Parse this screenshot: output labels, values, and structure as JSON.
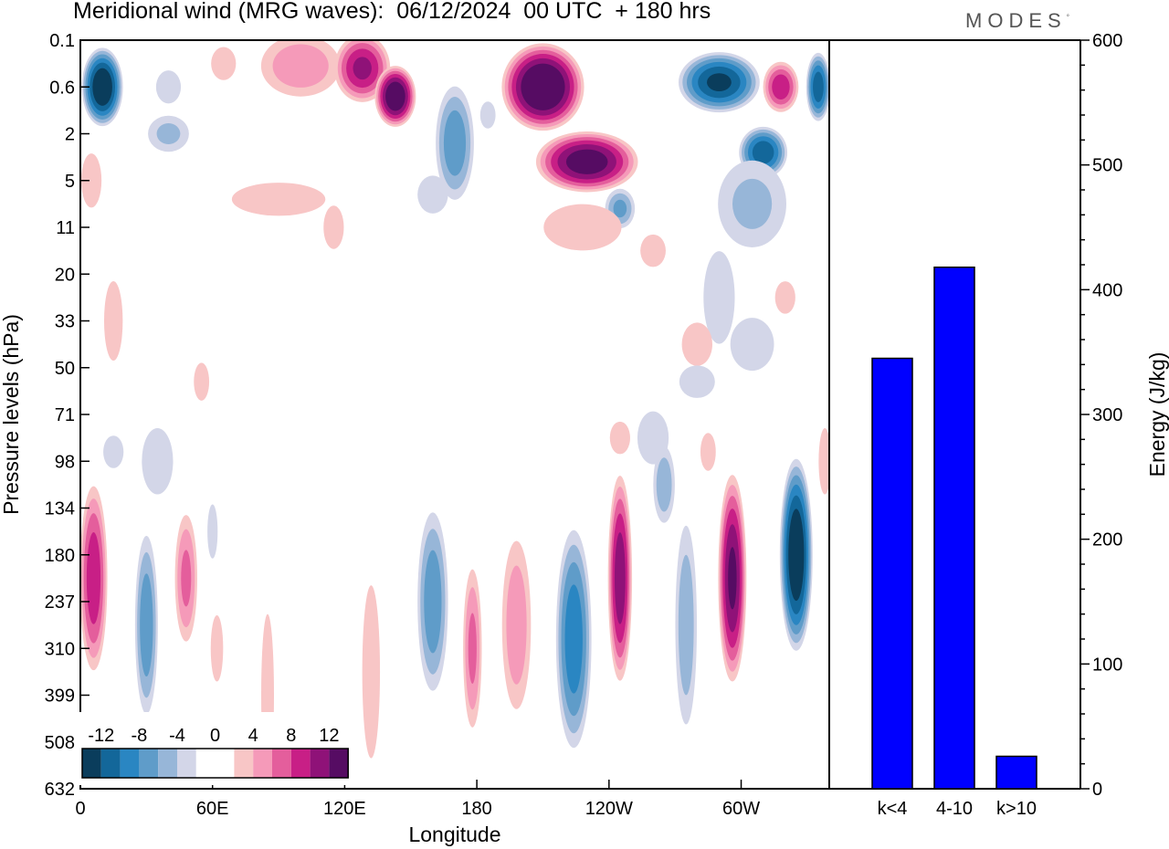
{
  "title": "Meridional wind (MRG waves):  06/12/2024  00 UTC  + 180 hrs",
  "brand": "MODES",
  "brand_mark": "°",
  "chart_data": [
    {
      "type": "heatmap",
      "name": "Meridional wind longitude-pressure cross section",
      "xlabel": "Longitude",
      "ylabel": "Pressure levels (hPa)",
      "x_ticks": [
        "0",
        "60E",
        "120E",
        "180",
        "120W",
        "60W"
      ],
      "x_tick_degrees": [
        0,
        60,
        120,
        180,
        240,
        300
      ],
      "x_range": [
        0,
        340
      ],
      "y_ticks": [
        "0.1",
        "0.6",
        "2",
        "5",
        "11",
        "20",
        "33",
        "50",
        "71",
        "98",
        "134",
        "180",
        "237",
        "310",
        "399",
        "508",
        "632"
      ],
      "colorbar": {
        "labels": [
          "-12",
          "-8",
          "-4",
          "0",
          "4",
          "8",
          "12"
        ],
        "levels": [
          -14,
          -12,
          -10,
          -8,
          -6,
          -4,
          -2,
          2,
          4,
          6,
          8,
          10,
          12,
          14
        ],
        "colors": [
          "#0a3d5c",
          "#13679a",
          "#2a86c2",
          "#5f9cc9",
          "#97b6d8",
          "#d3d6e8",
          "#ffffff",
          "#ffffff",
          "#f8c6c6",
          "#f59ab9",
          "#e45e9c",
          "#c81f86",
          "#8f1278",
          "#560c63"
        ]
      },
      "features": [
        {
          "lon": 10,
          "lev": 1.0,
          "dx": 10,
          "dy": 0.9,
          "v": -15
        },
        {
          "lon": 40,
          "lev": 1.0,
          "dx": 8,
          "dy": 0.5,
          "v": -4
        },
        {
          "lon": 65,
          "lev": 0.5,
          "dx": 8,
          "dy": 0.5,
          "v": 4
        },
        {
          "lon": 100,
          "lev": 0.55,
          "dx": 22,
          "dy": 0.8,
          "v": 6
        },
        {
          "lon": 128,
          "lev": 0.6,
          "dx": 14,
          "dy": 0.8,
          "v": 11
        },
        {
          "lon": 143,
          "lev": 1.2,
          "dx": 10,
          "dy": 0.7,
          "v": 15
        },
        {
          "lon": 170,
          "lev": 2.2,
          "dx": 10,
          "dy": 1.4,
          "v": -8
        },
        {
          "lon": 160,
          "lev": 3.3,
          "dx": 12,
          "dy": 0.7,
          "v": -3
        },
        {
          "lon": 185,
          "lev": 1.6,
          "dx": 6,
          "dy": 0.5,
          "v": -3
        },
        {
          "lon": 210,
          "lev": 1.0,
          "dx": 20,
          "dy": 1.0,
          "v": 16
        },
        {
          "lon": 230,
          "lev": 2.6,
          "dx": 25,
          "dy": 0.7,
          "v": 14
        },
        {
          "lon": 245,
          "lev": 3.6,
          "dx": 8,
          "dy": 0.5,
          "v": -7
        },
        {
          "lon": 228,
          "lev": 4.0,
          "dx": 25,
          "dy": 0.7,
          "v": 4
        },
        {
          "lon": 290,
          "lev": 0.9,
          "dx": 20,
          "dy": 0.7,
          "v": -13
        },
        {
          "lon": 318,
          "lev": 1.0,
          "dx": 9,
          "dy": 0.6,
          "v": 10
        },
        {
          "lon": 335,
          "lev": 1.0,
          "dx": 6,
          "dy": 0.8,
          "v": -12
        },
        {
          "lon": 310,
          "lev": 2.4,
          "dx": 12,
          "dy": 0.6,
          "v": -12
        },
        {
          "lon": 305,
          "lev": 3.5,
          "dx": 20,
          "dy": 1.2,
          "v": -5
        },
        {
          "lon": 40,
          "lev": 2.0,
          "dx": 12,
          "dy": 0.5,
          "v": -5
        },
        {
          "lon": 5,
          "lev": 3.0,
          "dx": 8,
          "dy": 1.0,
          "v": 3
        },
        {
          "lon": 90,
          "lev": 3.4,
          "dx": 30,
          "dy": 0.5,
          "v": 4
        },
        {
          "lon": 115,
          "lev": 4.0,
          "dx": 8,
          "dy": 0.8,
          "v": 3
        },
        {
          "lon": 260,
          "lev": 4.5,
          "dx": 10,
          "dy": 0.6,
          "v": 3
        },
        {
          "lon": 290,
          "lev": 5.5,
          "dx": 10,
          "dy": 1.4,
          "v": -4
        },
        {
          "lon": 305,
          "lev": 6.5,
          "dx": 14,
          "dy": 0.8,
          "v": -4
        },
        {
          "lon": 15,
          "lev": 6.0,
          "dx": 6,
          "dy": 1.2,
          "v": 4
        },
        {
          "lon": 320,
          "lev": 5.5,
          "dx": 8,
          "dy": 0.6,
          "v": 3
        },
        {
          "lon": 280,
          "lev": 6.5,
          "dx": 12,
          "dy": 0.8,
          "v": 3
        },
        {
          "lon": 55,
          "lev": 7.3,
          "dx": 6,
          "dy": 0.7,
          "v": 3
        },
        {
          "lon": 280,
          "lev": 7.3,
          "dx": 14,
          "dy": 0.6,
          "v": -3
        },
        {
          "lon": 260,
          "lev": 8.5,
          "dx": 10,
          "dy": 0.8,
          "v": -4
        },
        {
          "lon": 15,
          "lev": 8.8,
          "dx": 8,
          "dy": 0.6,
          "v": -3
        },
        {
          "lon": 35,
          "lev": 9.0,
          "dx": 10,
          "dy": 1.0,
          "v": -4
        },
        {
          "lon": 6,
          "lev": 11.5,
          "dx": 7,
          "dy": 2.2,
          "v": 10
        },
        {
          "lon": 30,
          "lev": 12.5,
          "dx": 6,
          "dy": 2.2,
          "v": -8
        },
        {
          "lon": 48,
          "lev": 11.5,
          "dx": 6,
          "dy": 1.6,
          "v": 7
        },
        {
          "lon": 60,
          "lev": 10.5,
          "dx": 4,
          "dy": 1.0,
          "v": -3
        },
        {
          "lon": 62,
          "lev": 13.0,
          "dx": 4,
          "dy": 1.0,
          "v": 4
        },
        {
          "lon": 85,
          "lev": 14.0,
          "dx": 5,
          "dy": 3.0,
          "v": 3
        },
        {
          "lon": 132,
          "lev": 13.5,
          "dx": 7,
          "dy": 3.2,
          "v": 3
        },
        {
          "lon": 160,
          "lev": 12.0,
          "dx": 8,
          "dy": 2.2,
          "v": -8
        },
        {
          "lon": 178,
          "lev": 13.0,
          "dx": 5,
          "dy": 2.0,
          "v": 7
        },
        {
          "lon": 198,
          "lev": 12.5,
          "dx": 8,
          "dy": 2.2,
          "v": 6
        },
        {
          "lon": 224,
          "lev": 12.8,
          "dx": 9,
          "dy": 2.6,
          "v": -10
        },
        {
          "lon": 245,
          "lev": 11.5,
          "dx": 6,
          "dy": 2.4,
          "v": 12
        },
        {
          "lon": 275,
          "lev": 12.5,
          "dx": 6,
          "dy": 2.6,
          "v": -6
        },
        {
          "lon": 296,
          "lev": 11.5,
          "dx": 7,
          "dy": 2.4,
          "v": 13
        },
        {
          "lon": 325,
          "lev": 11.0,
          "dx": 8,
          "dy": 2.2,
          "v": -15
        },
        {
          "lon": 338,
          "lev": 9.0,
          "dx": 4,
          "dy": 1.0,
          "v": 4
        },
        {
          "lon": 265,
          "lev": 9.5,
          "dx": 6,
          "dy": 1.0,
          "v": -6
        },
        {
          "lon": 245,
          "lev": 8.5,
          "dx": 8,
          "dy": 0.6,
          "v": 3
        },
        {
          "lon": 285,
          "lev": 8.8,
          "dx": 6,
          "dy": 0.7,
          "v": 3
        }
      ]
    },
    {
      "type": "bar",
      "name": "Energy by wavenumber",
      "categories": [
        "k<4",
        "4-10",
        "k>10"
      ],
      "values": [
        345,
        418,
        26
      ],
      "ylabel": "Energy (J/kg)",
      "ylim": [
        0,
        600
      ],
      "y_ticks": [
        "0",
        "100",
        "200",
        "300",
        "400",
        "500",
        "600"
      ],
      "color": "#0000ff"
    }
  ]
}
